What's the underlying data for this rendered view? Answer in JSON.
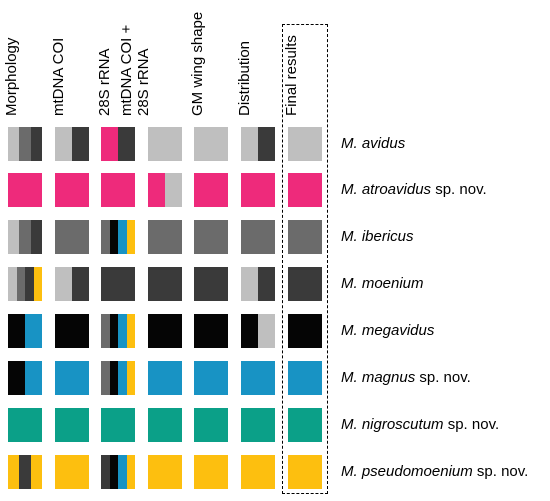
{
  "colors": {
    "lightgray": "#bfbfbf",
    "midgray": "#6b6b6b",
    "darkgray": "#3a3a3a",
    "black": "#050505",
    "pink": "#ee2a7b",
    "blue": "#1893c4",
    "teal": "#0ba088",
    "yellow": "#fdbf0f"
  },
  "columns": [
    "Morphology",
    "mtDNA COI",
    "28S rRNA",
    "mtDNA COI +\n28S rRNA",
    "GM wing shape",
    "Distribution",
    "Final results"
  ],
  "species": [
    {
      "genus": "M. avidus",
      "suffix": ""
    },
    {
      "genus": "M. atroavidus",
      "suffix": " sp. nov."
    },
    {
      "genus": "M. ibericus",
      "suffix": ""
    },
    {
      "genus": "M. moenium",
      "suffix": ""
    },
    {
      "genus": "M. megavidus",
      "suffix": ""
    },
    {
      "genus": "M. magnus",
      "suffix": " sp. nov."
    },
    {
      "genus": "M. nigroscutum",
      "suffix": " sp. nov."
    },
    {
      "genus": "M. pseudomoenium",
      "suffix": " sp. nov."
    }
  ],
  "grid": [
    [
      [
        "lightgray",
        "midgray",
        "darkgray"
      ],
      [
        "lightgray",
        "darkgray"
      ],
      [
        "pink",
        "darkgray"
      ],
      [
        "lightgray"
      ],
      [
        "lightgray"
      ],
      [
        "lightgray",
        "darkgray"
      ],
      [
        "lightgray"
      ]
    ],
    [
      [
        "pink"
      ],
      [
        "pink"
      ],
      [
        "pink"
      ],
      [
        "pink",
        "lightgray"
      ],
      [
        "pink"
      ],
      [
        "pink"
      ],
      [
        "pink"
      ]
    ],
    [
      [
        "lightgray",
        "midgray",
        "darkgray"
      ],
      [
        "midgray"
      ],
      [
        "midgray",
        "black",
        "blue",
        "yellow"
      ],
      [
        "midgray"
      ],
      [
        "midgray"
      ],
      [
        "midgray"
      ],
      [
        "midgray"
      ]
    ],
    [
      [
        "lightgray",
        "midgray",
        "darkgray",
        "yellow"
      ],
      [
        "lightgray",
        "darkgray"
      ],
      [
        "darkgray"
      ],
      [
        "darkgray"
      ],
      [
        "darkgray"
      ],
      [
        "lightgray",
        "darkgray"
      ],
      [
        "darkgray"
      ]
    ],
    [
      [
        "black",
        "blue"
      ],
      [
        "black"
      ],
      [
        "midgray",
        "black",
        "blue",
        "yellow"
      ],
      [
        "black"
      ],
      [
        "black"
      ],
      [
        "black",
        "lightgray"
      ],
      [
        "black"
      ]
    ],
    [
      [
        "black",
        "blue"
      ],
      [
        "blue"
      ],
      [
        "midgray",
        "black",
        "blue",
        "yellow"
      ],
      [
        "blue"
      ],
      [
        "blue"
      ],
      [
        "blue"
      ],
      [
        "blue"
      ]
    ],
    [
      [
        "teal"
      ],
      [
        "teal"
      ],
      [
        "teal"
      ],
      [
        "teal"
      ],
      [
        "teal"
      ],
      [
        "teal"
      ],
      [
        "teal"
      ]
    ],
    [
      [
        "yellow",
        "darkgray",
        "yellow"
      ],
      [
        "yellow"
      ],
      [
        "darkgray",
        "black",
        "blue",
        "yellow"
      ],
      [
        "yellow"
      ],
      [
        "yellow"
      ],
      [
        "yellow"
      ],
      [
        "yellow"
      ]
    ]
  ]
}
